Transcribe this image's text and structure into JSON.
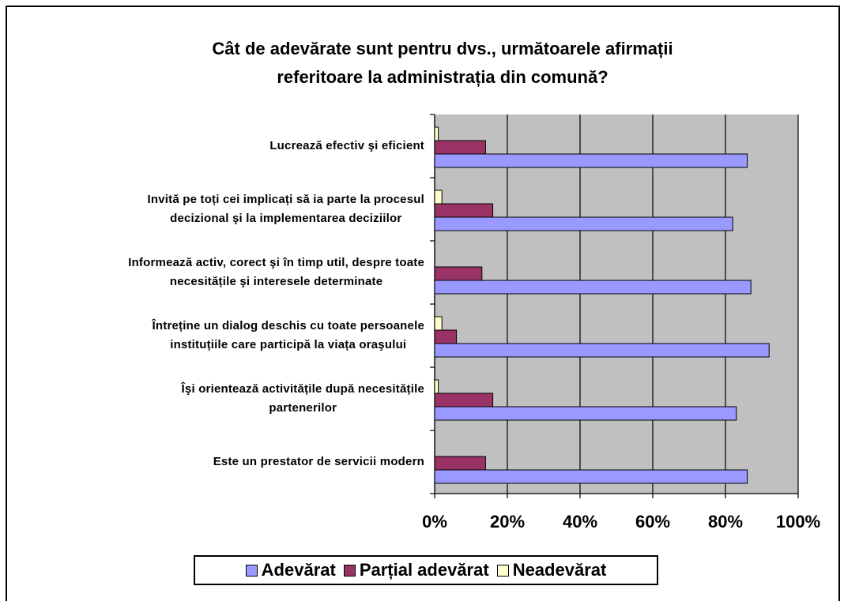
{
  "chart_data": {
    "type": "hbar",
    "title": "Cât de adevărate sunt pentru dvs., următoarele afirmații\nreferitoare la administrația din comună?",
    "categories": [
      "Lucrează efectiv şi eficient",
      "Invită pe toți cei implicați să ia parte la procesul\ndecizional şi la implementarea deciziilor",
      "Informează activ, corect şi în timp util, despre toate\nnecesitățile şi interesele determinate",
      "Întreține un dialog deschis cu toate persoanele\ninstituțiile care participă la viața oraşului",
      "Îşi orientează activitățile după necesitățile\npartenerilor",
      "Este un prestator de servicii modern"
    ],
    "series": [
      {
        "name": "Adevărat",
        "color": "#9999ff",
        "values": [
          86,
          82,
          87,
          92,
          83,
          86
        ]
      },
      {
        "name": "Parțial adevărat",
        "color": "#993366",
        "values": [
          14,
          16,
          13,
          6,
          16,
          14
        ]
      },
      {
        "name": "Neadevărat",
        "color": "#ffffcc",
        "values": [
          1,
          2,
          0,
          2,
          1,
          0
        ]
      }
    ],
    "xlim": [
      0,
      100
    ],
    "xticks": [
      {
        "value": 0,
        "label": "0%"
      },
      {
        "value": 20,
        "label": "20%"
      },
      {
        "value": 40,
        "label": "40%"
      },
      {
        "value": 60,
        "label": "60%"
      },
      {
        "value": 80,
        "label": "80%"
      },
      {
        "value": 100,
        "label": "100%"
      }
    ],
    "grid": true,
    "legend": "bottom"
  }
}
